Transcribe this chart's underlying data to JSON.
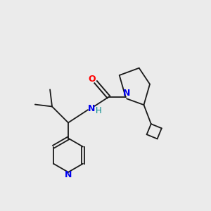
{
  "background_color": "#ebebeb",
  "bond_color": "#1a1a1a",
  "nitrogen_color": "#0000ee",
  "oxygen_color": "#ff0000",
  "nh_color": "#008888",
  "figsize": [
    3.0,
    3.0
  ],
  "dpi": 100,
  "xlim": [
    0,
    10
  ],
  "ylim": [
    0,
    10
  ]
}
